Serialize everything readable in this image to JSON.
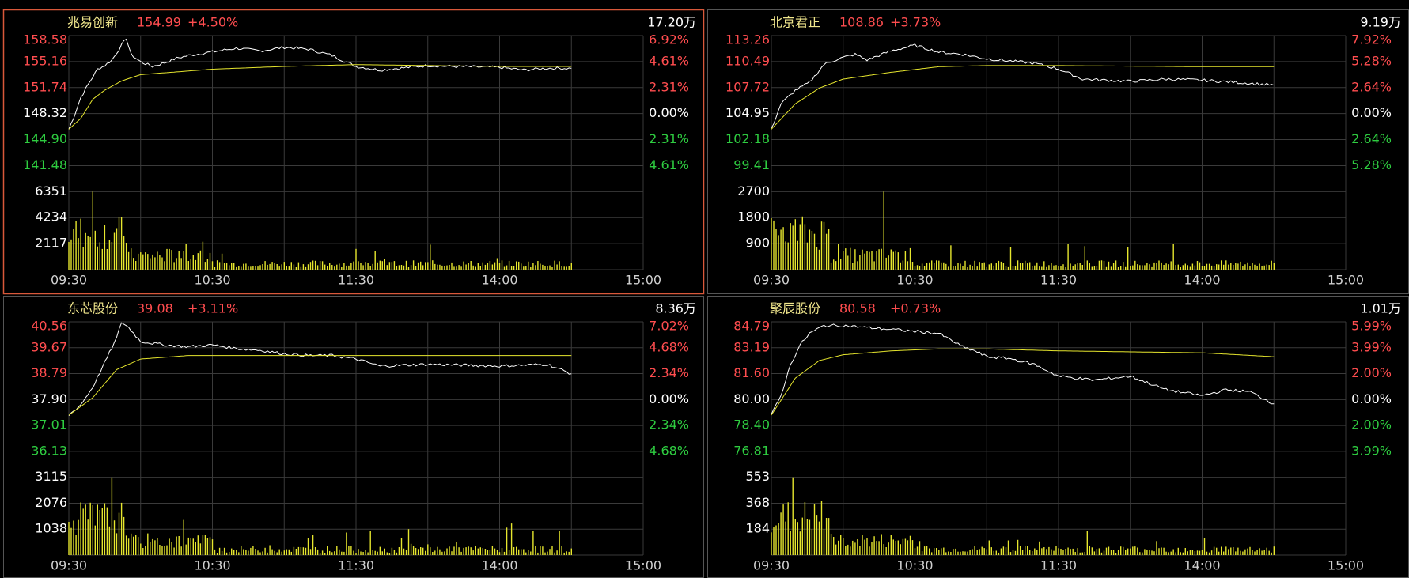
{
  "colors": {
    "background": "#000000",
    "grid": "#3a3a3a",
    "frame": "#555555",
    "selected_border": "#d9583a",
    "up": "#ff4d4f",
    "down": "#2ecc40",
    "flat": "#ffffff",
    "name": "#f0e68c",
    "price_line": "#ffffff",
    "avg_line": "#e6e62e",
    "volume_bar": "#e6e62e",
    "axis_text": "#d0d0d0"
  },
  "time_ticks": [
    "09:30",
    "10:30",
    "11:30",
    "14:00",
    "15:00"
  ],
  "panels": [
    {
      "name": "兆易创新",
      "price": "154.99",
      "change": "+4.50%",
      "volume_total": "17.20万",
      "selected": true,
      "price_ticks": [
        "158.58",
        "155.16",
        "151.74",
        "148.32",
        "144.90",
        "141.48"
      ],
      "pct_ticks": [
        "6.92%",
        "4.61%",
        "2.31%",
        "0.00%",
        "2.31%",
        "4.61%"
      ],
      "vol_ticks": [
        "6351",
        "4234",
        "2117"
      ]
    },
    {
      "name": "北京君正",
      "price": "108.86",
      "change": "+3.73%",
      "volume_total": "9.19万",
      "selected": false,
      "price_ticks": [
        "113.26",
        "110.49",
        "107.72",
        "104.95",
        "102.18",
        "99.41"
      ],
      "pct_ticks": [
        "7.92%",
        "5.28%",
        "2.64%",
        "0.00%",
        "2.64%",
        "5.28%"
      ],
      "vol_ticks": [
        "2700",
        "1800",
        "900"
      ]
    },
    {
      "name": "东芯股份",
      "price": "39.08",
      "change": "+3.11%",
      "volume_total": "8.36万",
      "selected": false,
      "price_ticks": [
        "40.56",
        "39.67",
        "38.79",
        "37.90",
        "37.01",
        "36.13"
      ],
      "pct_ticks": [
        "7.02%",
        "4.68%",
        "2.34%",
        "0.00%",
        "2.34%",
        "4.68%"
      ],
      "vol_ticks": [
        "3115",
        "2076",
        "1038"
      ]
    },
    {
      "name": "聚辰股份",
      "price": "80.58",
      "change": "+0.73%",
      "volume_total": "1.01万",
      "selected": false,
      "price_ticks": [
        "84.79",
        "83.19",
        "81.60",
        "80.00",
        "78.40",
        "76.81"
      ],
      "pct_ticks": [
        "5.99%",
        "3.99%",
        "2.00%",
        "0.00%",
        "2.00%",
        "3.99%"
      ],
      "vol_ticks": [
        "553",
        "368",
        "184"
      ]
    }
  ],
  "chart_data": [
    {
      "type": "line",
      "title": "兆易创新",
      "x_range": [
        "09:30",
        "15:00"
      ],
      "ylim": [
        141.48,
        158.58
      ],
      "prev_close": 148.32,
      "series": [
        {
          "name": "",
          "points": [
            [
              "09:30",
              148.32
            ],
            [
              "09:32",
              149.6
            ],
            [
              "09:35",
              151.8
            ],
            [
              "09:38",
              153.2
            ],
            [
              "09:42",
              154.9
            ],
            [
              "09:45",
              155.3
            ],
            [
              "09:48",
              155.9
            ],
            [
              "09:52",
              157.5
            ],
            [
              "09:54",
              158.3
            ],
            [
              "09:56",
              156.5
            ],
            [
              "10:00",
              155.7
            ],
            [
              "10:05",
              155.2
            ],
            [
              "10:10",
              155.6
            ],
            [
              "10:15",
              156.1
            ],
            [
              "10:20",
              156.4
            ],
            [
              "10:30",
              156.8
            ],
            [
              "10:40",
              157.2
            ],
            [
              "10:50",
              156.9
            ],
            [
              "11:00",
              157.3
            ],
            [
              "11:10",
              157.1
            ],
            [
              "11:20",
              156.4
            ],
            [
              "11:30",
              155.2
            ],
            [
              "13:10",
              154.8
            ],
            [
              "13:30",
              155.3
            ],
            [
              "13:40",
              155.2
            ],
            [
              "14:00",
              155.1
            ],
            [
              "14:10",
              154.8
            ],
            [
              "14:20",
              155.0
            ],
            [
              "14:30",
              154.99
            ]
          ]
        },
        {
          "name": "",
          "points": [
            [
              "09:30",
              148.32
            ],
            [
              "09:35",
              149.5
            ],
            [
              "09:40",
              151.6
            ],
            [
              "09:45",
              152.6
            ],
            [
              "09:52",
              153.6
            ],
            [
              "10:00",
              154.3
            ],
            [
              "10:30",
              154.9
            ],
            [
              "11:00",
              155.2
            ],
            [
              "11:30",
              155.4
            ],
            [
              "13:30",
              155.3
            ],
            [
              "14:00",
              155.2
            ],
            [
              "14:30",
              155.2
            ]
          ]
        }
      ],
      "volume": {
        "ylim": [
          0,
          6351
        ]
      }
    },
    {
      "type": "line",
      "title": "北京君正",
      "x_range": [
        "09:30",
        "15:00"
      ],
      "ylim": [
        99.41,
        113.26
      ],
      "prev_close": 104.95,
      "series": [
        {
          "name": "",
          "points": [
            [
              "09:30",
              104.95
            ],
            [
              "09:34",
              107.2
            ],
            [
              "09:40",
              108.4
            ],
            [
              "09:46",
              109.1
            ],
            [
              "09:52",
              110.7
            ],
            [
              "09:58",
              111.2
            ],
            [
              "10:05",
              111.6
            ],
            [
              "10:10",
              111.1
            ],
            [
              "10:20",
              111.9
            ],
            [
              "10:30",
              112.4
            ],
            [
              "10:40",
              111.8
            ],
            [
              "10:50",
              111.6
            ],
            [
              "11:00",
              111.2
            ],
            [
              "11:10",
              111.0
            ],
            [
              "11:20",
              110.8
            ],
            [
              "11:30",
              110.3
            ],
            [
              "13:10",
              109.4
            ],
            [
              "13:30",
              109.2
            ],
            [
              "13:45",
              109.4
            ],
            [
              "14:00",
              109.3
            ],
            [
              "14:15",
              109.1
            ],
            [
              "14:30",
              108.86
            ]
          ]
        },
        {
          "name": "",
          "points": [
            [
              "09:30",
              104.95
            ],
            [
              "09:40",
              107.2
            ],
            [
              "09:50",
              108.6
            ],
            [
              "10:00",
              109.4
            ],
            [
              "10:20",
              110.0
            ],
            [
              "10:40",
              110.5
            ],
            [
              "11:00",
              110.6
            ],
            [
              "11:30",
              110.6
            ],
            [
              "14:00",
              110.5
            ],
            [
              "14:30",
              110.5
            ]
          ]
        }
      ],
      "volume": {
        "ylim": [
          0,
          2700
        ]
      }
    },
    {
      "type": "line",
      "title": "东芯股份",
      "x_range": [
        "09:30",
        "15:00"
      ],
      "ylim": [
        36.13,
        40.56
      ],
      "prev_close": 37.9,
      "series": [
        {
          "name": "",
          "points": [
            [
              "09:30",
              37.9
            ],
            [
              "09:35",
              38.2
            ],
            [
              "09:40",
              38.7
            ],
            [
              "09:45",
              39.4
            ],
            [
              "09:50",
              40.1
            ],
            [
              "09:52",
              40.55
            ],
            [
              "09:55",
              40.4
            ],
            [
              "10:00",
              40.0
            ],
            [
              "10:10",
              39.9
            ],
            [
              "10:20",
              39.85
            ],
            [
              "10:30",
              39.9
            ],
            [
              "10:40",
              39.8
            ],
            [
              "10:50",
              39.75
            ],
            [
              "11:00",
              39.65
            ],
            [
              "11:10",
              39.6
            ],
            [
              "11:20",
              39.6
            ],
            [
              "11:30",
              39.5
            ],
            [
              "13:10",
              39.3
            ],
            [
              "13:30",
              39.35
            ],
            [
              "14:00",
              39.3
            ],
            [
              "14:20",
              39.35
            ],
            [
              "14:30",
              39.08
            ]
          ]
        },
        {
          "name": "",
          "points": [
            [
              "09:30",
              37.9
            ],
            [
              "09:40",
              38.4
            ],
            [
              "09:50",
              39.2
            ],
            [
              "10:00",
              39.5
            ],
            [
              "10:20",
              39.6
            ],
            [
              "11:00",
              39.6
            ],
            [
              "11:30",
              39.6
            ],
            [
              "14:30",
              39.6
            ]
          ]
        }
      ],
      "volume": {
        "ylim": [
          0,
          3115
        ]
      }
    },
    {
      "type": "line",
      "title": "聚辰股份",
      "x_range": [
        "09:30",
        "15:00"
      ],
      "ylim": [
        76.81,
        84.79
      ],
      "prev_close": 80.0,
      "series": [
        {
          "name": "",
          "points": [
            [
              "09:30",
              80.0
            ],
            [
              "09:34",
              81.0
            ],
            [
              "09:38",
              82.6
            ],
            [
              "09:42",
              83.6
            ],
            [
              "09:46",
              84.2
            ],
            [
              "09:52",
              84.6
            ],
            [
              "10:00",
              84.6
            ],
            [
              "10:10",
              84.5
            ],
            [
              "10:20",
              84.4
            ],
            [
              "10:30",
              84.3
            ],
            [
              "10:40",
              84.2
            ],
            [
              "10:50",
              83.5
            ],
            [
              "10:55",
              83.3
            ],
            [
              "11:00",
              83.0
            ],
            [
              "11:10",
              82.9
            ],
            [
              "11:20",
              82.6
            ],
            [
              "11:30",
              82.0
            ],
            [
              "13:15",
              81.8
            ],
            [
              "13:30",
              82.0
            ],
            [
              "13:45",
              81.3
            ],
            [
              "14:00",
              81.0
            ],
            [
              "14:10",
              81.3
            ],
            [
              "14:20",
              81.2
            ],
            [
              "14:30",
              80.58
            ]
          ]
        },
        {
          "name": "",
          "points": [
            [
              "09:30",
              80.0
            ],
            [
              "09:40",
              81.9
            ],
            [
              "09:50",
              82.8
            ],
            [
              "10:00",
              83.1
            ],
            [
              "10:20",
              83.3
            ],
            [
              "10:40",
              83.4
            ],
            [
              "11:00",
              83.4
            ],
            [
              "11:30",
              83.3
            ],
            [
              "14:00",
              83.2
            ],
            [
              "14:30",
              83.0
            ]
          ]
        }
      ],
      "volume": {
        "ylim": [
          0,
          553
        ]
      }
    }
  ]
}
